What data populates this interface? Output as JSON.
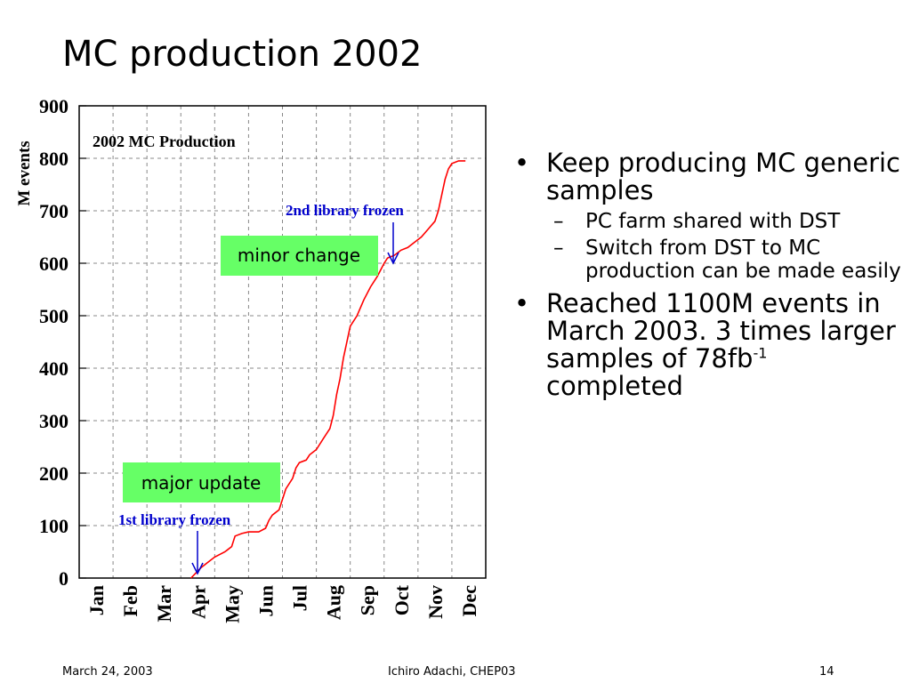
{
  "slide": {
    "title": "MC production 2002",
    "footer": {
      "date": "March 24, 2003",
      "author": "Ichiro Adachi, CHEP03",
      "page": "14"
    },
    "bullets": [
      {
        "text": "Keep producing MC generic samples",
        "sub": [
          "PC farm shared with DST",
          "Switch from DST to MC production can be made easily"
        ]
      },
      {
        "text": "Reached 1100M events in March 2003. 3 times larger samples of 78fb",
        "sup": "-1",
        "tail": " completed"
      }
    ],
    "bullet_glyph": "•",
    "dash_glyph": "–"
  },
  "chart_data": {
    "type": "line",
    "title": "2002 MC Production",
    "ylabel": "M events",
    "categories": [
      "Jan",
      "Feb",
      "Mar",
      "Apr",
      "May",
      "Jun",
      "Jul",
      "Aug",
      "Sep",
      "Oct",
      "Nov",
      "Dec"
    ],
    "ylim": [
      0,
      900
    ],
    "yticks": [
      0,
      100,
      200,
      300,
      400,
      500,
      600,
      700,
      800,
      900
    ],
    "grid": true,
    "line_color": "#ff0000",
    "series": [
      {
        "points": [
          [
            3.3,
            0
          ],
          [
            3.45,
            10
          ],
          [
            3.6,
            20
          ],
          [
            3.8,
            30
          ],
          [
            4.0,
            40
          ],
          [
            4.3,
            50
          ],
          [
            4.5,
            60
          ],
          [
            4.6,
            80
          ],
          [
            4.8,
            85
          ],
          [
            5.0,
            88
          ],
          [
            5.3,
            88
          ],
          [
            5.5,
            95
          ],
          [
            5.6,
            110
          ],
          [
            5.7,
            120
          ],
          [
            5.9,
            130
          ],
          [
            6.0,
            150
          ],
          [
            6.1,
            170
          ],
          [
            6.3,
            190
          ],
          [
            6.4,
            210
          ],
          [
            6.5,
            220
          ],
          [
            6.7,
            225
          ],
          [
            6.8,
            235
          ],
          [
            7.0,
            245
          ],
          [
            7.2,
            265
          ],
          [
            7.4,
            285
          ],
          [
            7.5,
            310
          ],
          [
            7.6,
            350
          ],
          [
            7.7,
            380
          ],
          [
            7.8,
            420
          ],
          [
            7.9,
            450
          ],
          [
            8.0,
            480
          ],
          [
            8.2,
            500
          ],
          [
            8.4,
            530
          ],
          [
            8.6,
            555
          ],
          [
            8.8,
            575
          ],
          [
            9.0,
            600
          ],
          [
            9.1,
            610
          ],
          [
            9.3,
            615
          ],
          [
            9.5,
            625
          ],
          [
            9.7,
            630
          ],
          [
            9.9,
            640
          ],
          [
            10.1,
            650
          ],
          [
            10.3,
            665
          ],
          [
            10.5,
            680
          ],
          [
            10.6,
            700
          ],
          [
            10.7,
            730
          ],
          [
            10.8,
            760
          ],
          [
            10.9,
            780
          ],
          [
            11.0,
            790
          ],
          [
            11.2,
            795
          ],
          [
            11.4,
            795
          ]
        ]
      }
    ],
    "annotations": [
      {
        "text": "1st library frozen",
        "color": "#0000cc",
        "x": 3.3,
        "y": 0
      },
      {
        "text": "2nd library frozen",
        "color": "#0000cc",
        "x": 9.1,
        "y": 600
      },
      {
        "text": "major update",
        "bg": "#66ff66"
      },
      {
        "text": "minor change",
        "bg": "#66ff66"
      }
    ]
  }
}
